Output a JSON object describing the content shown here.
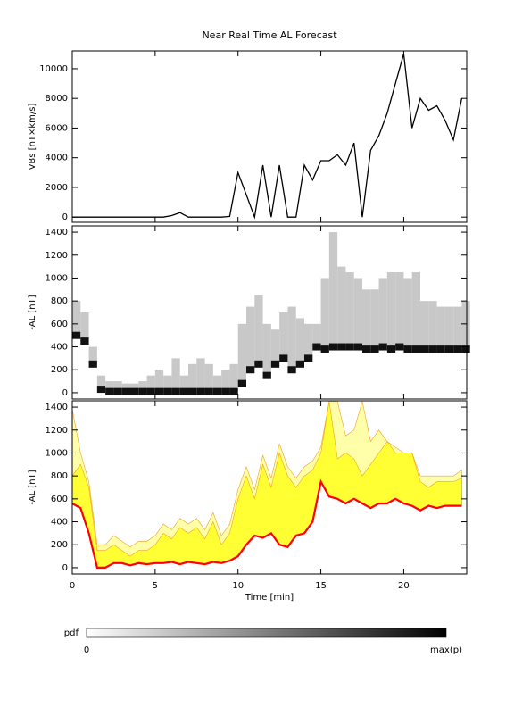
{
  "chart_data": [
    {
      "type": "line",
      "title": "Near Real Time AL Forecast",
      "ylabel": "VBs [nT×km/s]",
      "color": "#000000",
      "xlim": [
        0,
        23.8
      ],
      "xticks": [
        0,
        5,
        10,
        15,
        20
      ],
      "ylim": [
        -350,
        11200
      ],
      "yticks": [
        0,
        2000,
        4000,
        6000,
        8000,
        10000
      ],
      "x": [
        0,
        0.5,
        1,
        1.5,
        2,
        2.5,
        3,
        3.5,
        4,
        4.5,
        5,
        5.5,
        6,
        6.5,
        7,
        7.5,
        8,
        8.5,
        9,
        9.5,
        10,
        10.5,
        11,
        11.5,
        12,
        12.5,
        13,
        13.5,
        14,
        14.5,
        15,
        15.5,
        16,
        16.5,
        17,
        17.5,
        18,
        18.5,
        19,
        19.5,
        20,
        20.5,
        21,
        21.5,
        22,
        22.5,
        23,
        23.5
      ],
      "values": [
        0,
        0,
        0,
        0,
        0,
        0,
        0,
        0,
        0,
        0,
        0,
        0,
        100,
        300,
        0,
        0,
        0,
        0,
        0,
        50,
        3000,
        1500,
        0,
        3500,
        0,
        3500,
        0,
        0,
        3500,
        2500,
        3800,
        3800,
        4200,
        3500,
        5000,
        0,
        4500,
        5500,
        7000,
        9000,
        11000,
        6000,
        8000,
        7200,
        7500,
        6500,
        5200,
        8000
      ]
    },
    {
      "type": "heatmap",
      "ylabel": "-AL [nT]",
      "xlim": [
        0,
        23.8
      ],
      "xticks": [
        0,
        5,
        10,
        15,
        20
      ],
      "ylim": [
        -55,
        1455
      ],
      "yticks": [
        0,
        200,
        400,
        600,
        800,
        1000,
        1200,
        1400
      ],
      "x": [
        0,
        0.5,
        1,
        1.5,
        2,
        2.5,
        3,
        3.5,
        4,
        4.5,
        5,
        5.5,
        6,
        6.5,
        7,
        7.5,
        8,
        8.5,
        9,
        9.5,
        10,
        10.5,
        11,
        11.5,
        12,
        12.5,
        13,
        13.5,
        14,
        14.5,
        15,
        15.5,
        16,
        16.5,
        17,
        17.5,
        18,
        18.5,
        19,
        19.5,
        20,
        20.5,
        21,
        21.5,
        22,
        22.5,
        23,
        23.5
      ],
      "mode": [
        500,
        450,
        250,
        30,
        10,
        10,
        10,
        10,
        10,
        10,
        10,
        10,
        10,
        10,
        10,
        10,
        10,
        10,
        10,
        10,
        80,
        200,
        250,
        150,
        250,
        300,
        200,
        250,
        300,
        400,
        380,
        400,
        400,
        400,
        400,
        380,
        380,
        400,
        380,
        400,
        380,
        380,
        380,
        380,
        380,
        380,
        380,
        380
      ],
      "spread": [
        800,
        700,
        400,
        150,
        100,
        100,
        80,
        80,
        100,
        150,
        200,
        150,
        300,
        150,
        250,
        300,
        250,
        150,
        200,
        250,
        600,
        750,
        850,
        600,
        550,
        700,
        750,
        650,
        600,
        600,
        1000,
        1400,
        1100,
        1050,
        1000,
        900,
        900,
        1000,
        1050,
        1050,
        1000,
        1050,
        800,
        800,
        750,
        750,
        750,
        800
      ]
    },
    {
      "type": "band",
      "ylabel": "-AL [nT]",
      "xlabel": "Time [min]",
      "color": "#ff0000",
      "band_color": "#ffff33",
      "outer_color": "#ffffaa",
      "xlim": [
        0,
        23.8
      ],
      "xticks": [
        0,
        5,
        10,
        15,
        20
      ],
      "ylim": [
        -55,
        1455
      ],
      "yticks": [
        0,
        200,
        400,
        600,
        800,
        1000,
        1200,
        1400
      ],
      "x": [
        0,
        0.5,
        1,
        1.5,
        2,
        2.5,
        3,
        3.5,
        4,
        4.5,
        5,
        5.5,
        6,
        6.5,
        7,
        7.5,
        8,
        8.5,
        9,
        9.5,
        10,
        10.5,
        11,
        11.5,
        12,
        12.5,
        13,
        13.5,
        14,
        14.5,
        15,
        15.5,
        16,
        16.5,
        17,
        17.5,
        18,
        18.5,
        19,
        19.5,
        20,
        20.5,
        21,
        21.5,
        22,
        22.5,
        23,
        23.5
      ],
      "median": [
        560,
        520,
        300,
        0,
        0,
        40,
        40,
        20,
        40,
        30,
        40,
        40,
        50,
        30,
        50,
        40,
        30,
        50,
        40,
        60,
        100,
        200,
        280,
        260,
        300,
        200,
        180,
        280,
        300,
        400,
        750,
        620,
        600,
        560,
        600,
        560,
        520,
        560,
        560,
        600,
        560,
        540,
        500,
        540,
        520,
        540,
        540,
        540
      ],
      "upper": [
        800,
        900,
        700,
        150,
        150,
        200,
        150,
        100,
        150,
        150,
        200,
        300,
        250,
        350,
        300,
        350,
        250,
        400,
        200,
        300,
        600,
        800,
        600,
        900,
        700,
        1000,
        800,
        700,
        800,
        850,
        1000,
        1450,
        950,
        1000,
        950,
        800,
        900,
        1000,
        1100,
        1000,
        1000,
        1000,
        750,
        700,
        750,
        750,
        750,
        780
      ],
      "outer": [
        1380,
        1000,
        750,
        200,
        200,
        280,
        230,
        180,
        230,
        230,
        280,
        380,
        330,
        430,
        380,
        430,
        330,
        480,
        280,
        380,
        680,
        880,
        680,
        980,
        780,
        1080,
        880,
        780,
        880,
        930,
        1050,
        1450,
        1450,
        1150,
        1200,
        1450,
        1100,
        1200,
        1100,
        1050,
        1000,
        1000,
        800,
        800,
        800,
        800,
        800,
        850
      ]
    }
  ],
  "colorbar": {
    "label": "pdf",
    "min": 0,
    "max_label": "max(p)"
  }
}
